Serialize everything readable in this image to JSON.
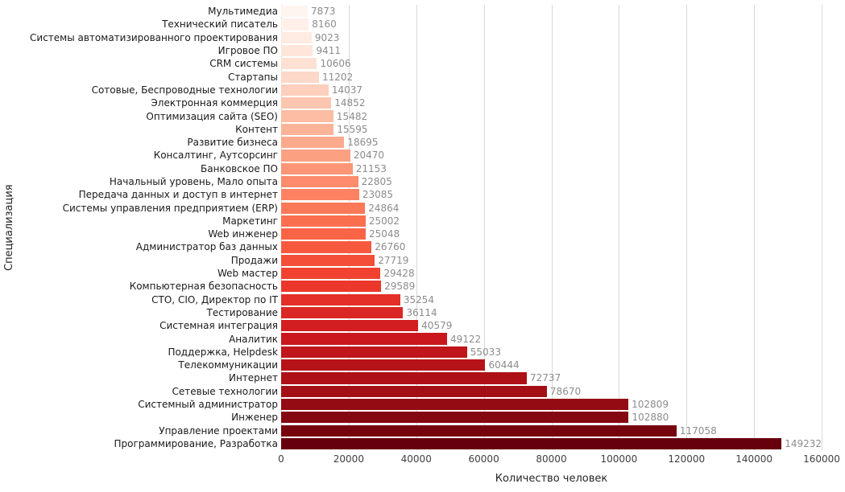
{
  "chart_data": {
    "type": "bar",
    "orientation": "horizontal",
    "title": "",
    "xlabel": "Количество человек",
    "ylabel": "Специализация",
    "xlim": [
      0,
      160000
    ],
    "xticks": [
      0,
      20000,
      40000,
      60000,
      80000,
      100000,
      120000,
      140000,
      160000
    ],
    "grid": "vertical",
    "legend": "none",
    "palette": {
      "name": "Reds",
      "stops": [
        "#fff5f0",
        "#fee0d2",
        "#fcbba1",
        "#fc9272",
        "#fb6a4a",
        "#ef3b2c",
        "#cb181d",
        "#a50f15",
        "#67000d"
      ]
    },
    "colors": {
      "background": "#ffffff",
      "grid_line": "#d9d9d9",
      "value_label": "#8c8c8c",
      "tick_label": "#404040",
      "axis_label": "#262626",
      "category_label": "#1a1a1a"
    },
    "categories": [
      "Мультимедиа",
      "Технический писатель",
      "Системы автоматизированного проектирования",
      "Игровое ПО",
      "CRM системы",
      "Стартапы",
      "Сотовые, Беспроводные технологии",
      "Электронная коммерция",
      "Оптимизация сайта (SEO)",
      "Контент",
      "Развитие бизнеса",
      "Консалтинг, Аутсорсинг",
      "Банковское ПО",
      "Начальный уровень, Мало опыта",
      "Передача данных и доступ в интернет",
      "Системы управления предприятием (ERP)",
      "Маркетинг",
      "Web инженер",
      "Администратор баз данных",
      "Продажи",
      "Web мастер",
      "Компьютерная безопасность",
      "CTO, CIO, Директор по IT",
      "Тестирование",
      "Системная интеграция",
      "Аналитик",
      "Поддержка, Helpdesk",
      "Телекоммуникации",
      "Интернет",
      "Сетевые технологии",
      "Системный администратор",
      "Инженер",
      "Управление проектами",
      "Программирование, Разработка"
    ],
    "values": [
      7873,
      8160,
      9023,
      9411,
      10606,
      11202,
      14037,
      14852,
      15482,
      15595,
      18695,
      20470,
      21153,
      22805,
      23085,
      24864,
      25002,
      25048,
      26760,
      27719,
      29428,
      29589,
      35254,
      36114,
      40579,
      49122,
      55033,
      60444,
      72737,
      78670,
      102809,
      102880,
      117058,
      149232
    ]
  }
}
